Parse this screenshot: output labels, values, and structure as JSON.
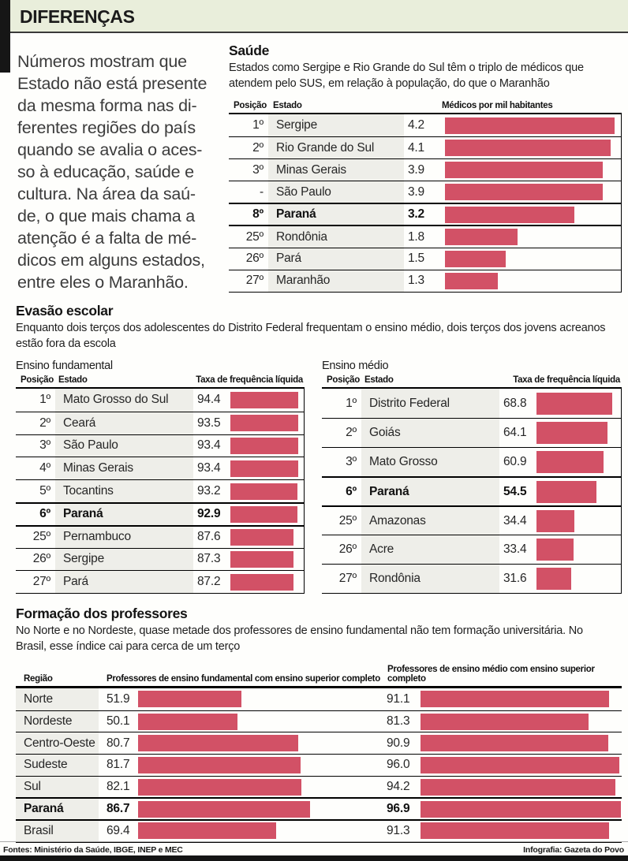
{
  "page": {
    "title": "DIFERENÇAS",
    "accent_color": "#d25166",
    "band_color": "#e9eedb",
    "estado_column_color": "#eeeee9"
  },
  "intro": {
    "text": "Números mostram que\nEstado não está presente\nda mesma forma nas di-\nferentes regiões do país\nquando se avalia o aces-\nso à educação, saúde e\ncultura. Na área da saú-\nde, o que mais chama a\natenção é a falta de mé-\ndicos em alguns estados,\nentre eles o Maranhão."
  },
  "evasao": {
    "title": "Evasão escolar",
    "subtitle": "Enquanto dois terços dos adolescentes do Distrito Federal frequentam o ensino médio, dois terços dos jovens acreanos\nestão fora da escola"
  },
  "footer": {
    "left": "Fontes: Ministério da Saúde, IBGE, INEP e MEC",
    "right": "Infografia: Gazeta do Povo"
  },
  "chart_data": [
    {
      "type": "bar",
      "title": "Saúde",
      "subtitle": "Estados como Sergipe e Rio Grande do Sul têm o triplo de médicos que\natendem pelo SUS, em relação à população, do que o Maranhão",
      "col_headers": [
        "Posição",
        "Estado",
        "Médicos por mil habitantes"
      ],
      "categories": [
        "Sergipe",
        "Rio Grande do Sul",
        "Minas Gerais",
        "São Paulo",
        "Paraná",
        "Rondônia",
        "Pará",
        "Maranhão"
      ],
      "values": [
        4.2,
        4.1,
        3.9,
        3.9,
        3.2,
        1.8,
        1.5,
        1.3
      ],
      "bar_scale_max": 4.35,
      "rows": [
        {
          "pos": "1º",
          "estado": "Sergipe",
          "valor": "4.2",
          "bold": false
        },
        {
          "pos": "2º",
          "estado": "Rio Grande do Sul",
          "valor": "4.1",
          "bold": false
        },
        {
          "pos": "3º",
          "estado": "Minas Gerais",
          "valor": "3.9",
          "bold": false
        },
        {
          "pos": "-",
          "estado": "São Paulo",
          "valor": "3.9",
          "bold": false
        },
        {
          "pos": "8º",
          "estado": "Paraná",
          "valor": "3.2",
          "bold": true
        },
        {
          "pos": "25º",
          "estado": "Rondônia",
          "valor": "1.8",
          "bold": false
        },
        {
          "pos": "26º",
          "estado": "Pará",
          "valor": "1.5",
          "bold": false
        },
        {
          "pos": "27º",
          "estado": "Maranhão",
          "valor": "1.3",
          "bold": false
        }
      ]
    },
    {
      "type": "bar",
      "label": "Ensino fundamental",
      "col_headers": [
        "Posição",
        "Estado",
        "Taxa de frequência líquida"
      ],
      "categories": [
        "Mato Grosso do Sul",
        "Ceará",
        "São Paulo",
        "Minas Gerais",
        "Tocantins",
        "Paraná",
        "Pernambuco",
        "Sergipe",
        "Pará"
      ],
      "values": [
        94.4,
        93.5,
        93.4,
        93.4,
        93.2,
        92.9,
        87.6,
        87.3,
        87.2
      ],
      "bar_scale_max": 101.5,
      "rows": [
        {
          "pos": "1º",
          "estado": "Mato Grosso do Sul",
          "valor": "94.4",
          "bold": false
        },
        {
          "pos": "2º",
          "estado": "Ceará",
          "valor": "93.5",
          "bold": false
        },
        {
          "pos": "3º",
          "estado": "São Paulo",
          "valor": "93.4",
          "bold": false
        },
        {
          "pos": "4º",
          "estado": "Minas Gerais",
          "valor": "93.4",
          "bold": false
        },
        {
          "pos": "5º",
          "estado": "Tocantins",
          "valor": "93.2",
          "bold": false
        },
        {
          "pos": "6º",
          "estado": "Paraná",
          "valor": "92.9",
          "bold": true
        },
        {
          "pos": "25º",
          "estado": "Pernambuco",
          "valor": "87.6",
          "bold": false
        },
        {
          "pos": "26º",
          "estado": "Sergipe",
          "valor": "87.3",
          "bold": false
        },
        {
          "pos": "27º",
          "estado": "Pará",
          "valor": "87.2",
          "bold": false
        }
      ]
    },
    {
      "type": "bar",
      "label": "Ensino médio",
      "col_headers": [
        "Posição",
        "Estado",
        "Taxa de frequência líquida"
      ],
      "categories": [
        "Distrito Federal",
        "Goiás",
        "Mato Grosso",
        "Paraná",
        "Amazonas",
        "Acre",
        "Rondônia"
      ],
      "values": [
        68.8,
        64.1,
        60.9,
        54.5,
        34.4,
        33.4,
        31.6
      ],
      "bar_scale_max": 76.5,
      "rows": [
        {
          "pos": "1º",
          "estado": "Distrito Federal",
          "valor": "68.8",
          "bold": false
        },
        {
          "pos": "2º",
          "estado": "Goiás",
          "valor": "64.1",
          "bold": false
        },
        {
          "pos": "3º",
          "estado": "Mato Grosso",
          "valor": "60.9",
          "bold": false
        },
        {
          "pos": "6º",
          "estado": "Paraná",
          "valor": "54.5",
          "bold": true
        },
        {
          "pos": "25º",
          "estado": "Amazonas",
          "valor": "34.4",
          "bold": false
        },
        {
          "pos": "26º",
          "estado": "Acre",
          "valor": "33.4",
          "bold": false
        },
        {
          "pos": "27º",
          "estado": "Rondônia",
          "valor": "31.6",
          "bold": false
        }
      ]
    },
    {
      "type": "bar",
      "title": "Formação dos professores",
      "subtitle": "No Norte e no Nordeste, quase metade dos professores de ensino fundamental não tem formação universitária. No\nBrasil, esse índice cai para cerca de um terço",
      "col_headers": [
        "Região",
        "Professores de ensino fundamental com ensino superior completo",
        "Professores de ensino médio com ensino superior completo"
      ],
      "categories": [
        "Norte",
        "Nordeste",
        "Centro-Oeste",
        "Sudeste",
        "Sul",
        "Paraná",
        "Brasil"
      ],
      "series": [
        {
          "name": "Professores de ensino fundamental com ensino superior completo",
          "values": [
            51.9,
            50.1,
            80.7,
            81.7,
            82.1,
            86.7,
            69.4
          ]
        },
        {
          "name": "Professores de ensino médio com ensino superior completo",
          "values": [
            91.1,
            81.3,
            90.9,
            96.0,
            94.2,
            96.9,
            91.3
          ]
        }
      ],
      "bar1_scale_max": 87.3,
      "bar2_scale_max": 97.3,
      "rows": [
        {
          "regiao": "Norte",
          "v1": "51.9",
          "v2": "91.1",
          "bold": false
        },
        {
          "regiao": "Nordeste",
          "v1": "50.1",
          "v2": "81.3",
          "bold": false
        },
        {
          "regiao": "Centro-Oeste",
          "v1": "80.7",
          "v2": "90.9",
          "bold": false
        },
        {
          "regiao": "Sudeste",
          "v1": "81.7",
          "v2": "96.0",
          "bold": false
        },
        {
          "regiao": "Sul",
          "v1": "82.1",
          "v2": "94.2",
          "bold": false
        },
        {
          "regiao": "Paraná",
          "v1": "86.7",
          "v2": "96.9",
          "bold": true
        },
        {
          "regiao": "Brasil",
          "v1": "69.4",
          "v2": "91.3",
          "bold": false
        }
      ]
    }
  ]
}
